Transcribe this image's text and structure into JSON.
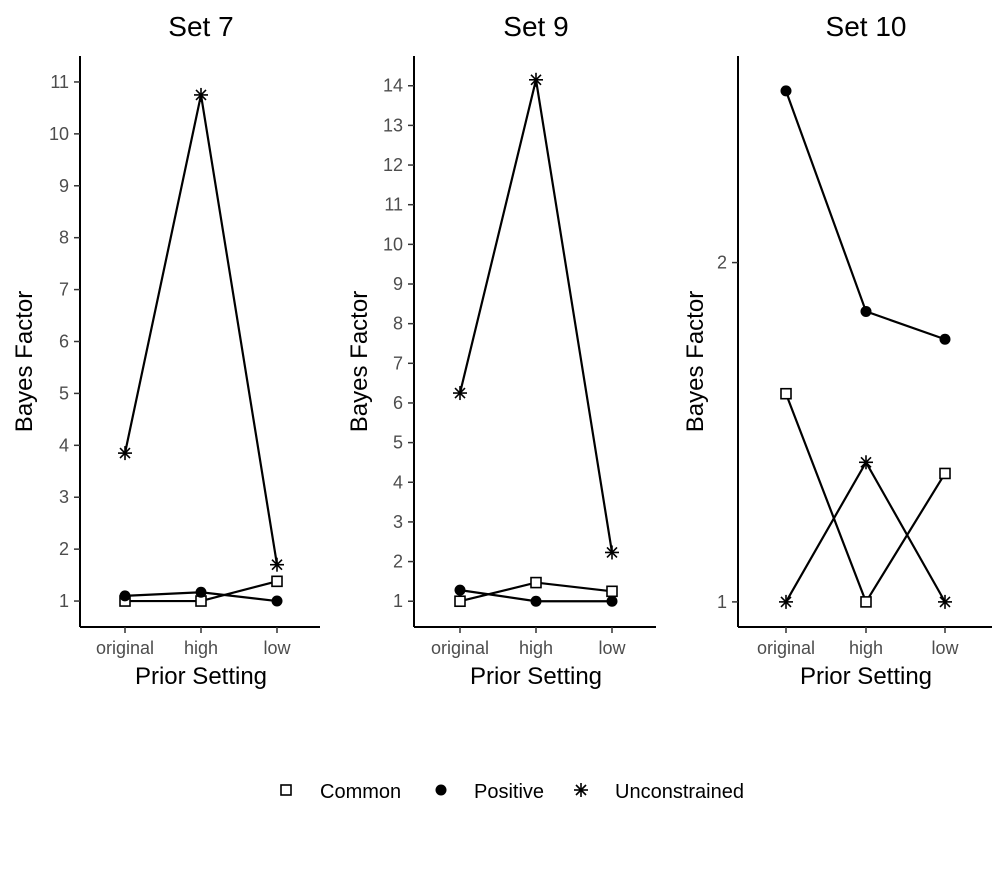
{
  "chart_data": [
    {
      "type": "line",
      "title": "Set 7",
      "xlabel": "Prior Setting",
      "ylabel": "Bayes Factor",
      "categories": [
        "original",
        "high",
        "low"
      ],
      "yticks": [
        "1",
        "2",
        "3",
        "4",
        "5",
        "6",
        "7",
        "8",
        "9",
        "10",
        "11"
      ],
      "ylim": [
        0.5,
        11.5
      ],
      "yscale": "linear",
      "series": [
        {
          "name": "Common",
          "values": [
            1.0,
            1.0,
            1.38
          ]
        },
        {
          "name": "Positive",
          "values": [
            1.1,
            1.17,
            1.0
          ]
        },
        {
          "name": "Unconstrained",
          "values": [
            3.85,
            10.75,
            1.7
          ]
        }
      ]
    },
    {
      "type": "line",
      "title": "Set 9",
      "xlabel": "Prior Setting",
      "ylabel": "Bayes Factor",
      "categories": [
        "original",
        "high",
        "low"
      ],
      "yticks": [
        "1",
        "2",
        "3",
        "4",
        "5",
        "6",
        "7",
        "8",
        "9",
        "10",
        "11",
        "12",
        "13",
        "14"
      ],
      "ylim": [
        0.35,
        14.75
      ],
      "yscale": "linear",
      "series": [
        {
          "name": "Common",
          "values": [
            1.0,
            1.47,
            1.25
          ]
        },
        {
          "name": "Positive",
          "values": [
            1.28,
            1.0,
            1.0
          ]
        },
        {
          "name": "Unconstrained",
          "values": [
            6.25,
            14.15,
            2.23
          ]
        }
      ]
    },
    {
      "type": "line",
      "title": "Set 10",
      "xlabel": "Prior Setting",
      "ylabel": "Bayes Factor",
      "categories": [
        "original",
        "high",
        "low"
      ],
      "yticks": [
        "1",
        "2"
      ],
      "ylim": [
        0.95,
        3.05
      ],
      "yscale": "log",
      "series": [
        {
          "name": "Common",
          "values": [
            1.53,
            1.0,
            1.3
          ]
        },
        {
          "name": "Positive",
          "values": [
            2.84,
            1.81,
            1.71
          ]
        },
        {
          "name": "Unconstrained",
          "values": [
            1.0,
            1.33,
            1.0
          ]
        }
      ]
    }
  ],
  "legend": {
    "position": "bottom",
    "items": [
      {
        "label": "Common",
        "marker": "open-square"
      },
      {
        "label": "Positive",
        "marker": "filled-circle"
      },
      {
        "label": "Unconstrained",
        "marker": "asterisk"
      }
    ]
  },
  "colors": {
    "line": "#000000",
    "tick_text": "#4d4d4d",
    "background": "#ffffff"
  }
}
